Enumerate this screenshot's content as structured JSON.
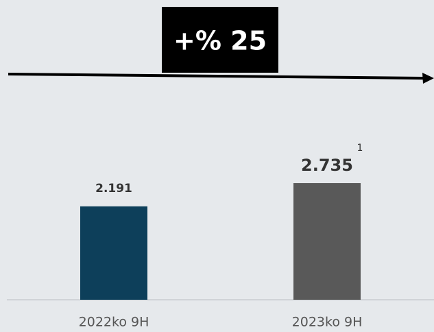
{
  "chart_data": {
    "type": "bar",
    "categories": [
      "2022ko 9H",
      "2023ko 9H"
    ],
    "values": [
      2.191,
      2.735
    ],
    "colors": [
      "#0d3f5a",
      "#595959"
    ],
    "annotations": [
      "+% 25",
      "1"
    ]
  }
}
